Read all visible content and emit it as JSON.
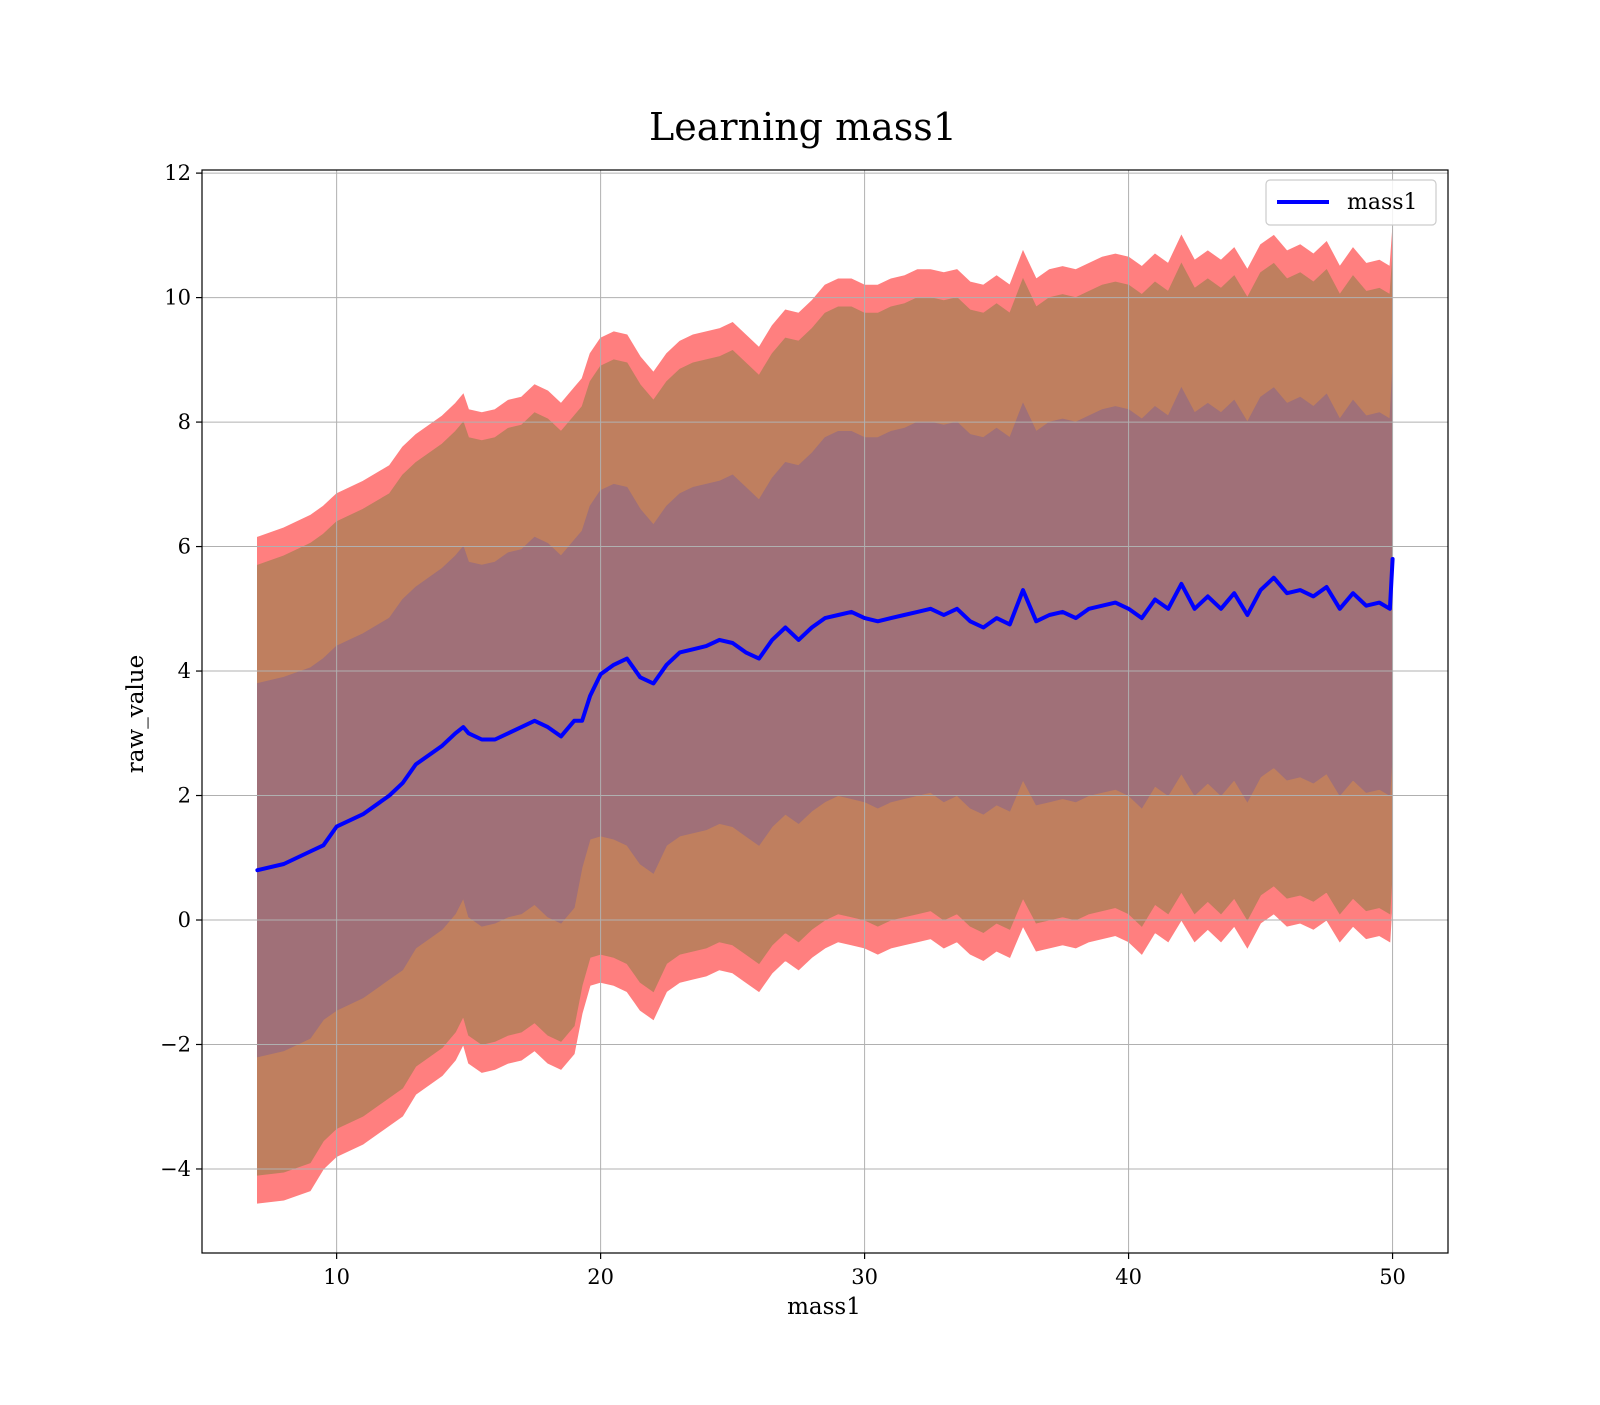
{
  "chart_data": {
    "type": "line",
    "title": "Learning mass1",
    "xlabel": "mass1",
    "ylabel": "raw_value",
    "xlim": [
      4.9,
      52.1
    ],
    "ylim": [
      -5.35,
      12.05
    ],
    "grid": true,
    "legend_position": "top-right",
    "x_ticks": [
      {
        "value": 10,
        "label": "10"
      },
      {
        "value": 20,
        "label": "20"
      },
      {
        "value": 30,
        "label": "30"
      },
      {
        "value": 40,
        "label": "40"
      },
      {
        "value": 50,
        "label": "50"
      }
    ],
    "y_ticks": [
      {
        "value": -4,
        "label": "−4"
      },
      {
        "value": -2,
        "label": "−2"
      },
      {
        "value": 0,
        "label": "0"
      },
      {
        "value": 2,
        "label": "2"
      },
      {
        "value": 4,
        "label": "4"
      },
      {
        "value": 6,
        "label": "6"
      },
      {
        "value": 8,
        "label": "8"
      },
      {
        "value": 10,
        "label": "10"
      },
      {
        "value": 12,
        "label": "12"
      }
    ],
    "x": [
      7.0,
      8.0,
      9.0,
      9.5,
      10.0,
      11.0,
      12.0,
      12.5,
      13.0,
      14.0,
      14.5,
      14.8,
      15.0,
      15.5,
      16.0,
      16.5,
      17.0,
      17.5,
      18.0,
      18.5,
      19.0,
      19.3,
      19.6,
      20.0,
      20.5,
      21.0,
      21.5,
      22.0,
      22.5,
      23.0,
      23.5,
      24.0,
      24.5,
      25.0,
      25.5,
      26.0,
      26.5,
      27.0,
      27.5,
      28.0,
      28.5,
      29.0,
      29.5,
      30.0,
      30.5,
      31.0,
      31.5,
      32.0,
      32.5,
      33.0,
      33.5,
      34.0,
      34.5,
      35.0,
      35.5,
      36.0,
      36.5,
      37.0,
      37.5,
      38.0,
      38.5,
      39.0,
      39.5,
      40.0,
      40.5,
      41.0,
      41.5,
      42.0,
      42.5,
      43.0,
      43.5,
      44.0,
      44.5,
      45.0,
      45.5,
      46.0,
      46.5,
      47.0,
      47.5,
      48.0,
      48.5,
      49.0,
      49.5,
      49.9,
      50.0
    ],
    "series": [
      {
        "name": "mass1",
        "color": "#0000ff",
        "values": [
          0.8,
          0.9,
          1.1,
          1.2,
          1.5,
          1.7,
          2.0,
          2.2,
          2.5,
          2.8,
          3.0,
          3.1,
          3.0,
          2.9,
          2.9,
          3.0,
          3.1,
          3.2,
          3.1,
          2.95,
          3.2,
          3.2,
          3.6,
          3.95,
          4.1,
          4.2,
          3.9,
          3.8,
          4.1,
          4.3,
          4.35,
          4.4,
          4.5,
          4.45,
          4.3,
          4.2,
          4.5,
          4.7,
          4.5,
          4.7,
          4.85,
          4.9,
          4.95,
          4.85,
          4.8,
          4.85,
          4.9,
          4.95,
          5.0,
          4.9,
          5.0,
          4.8,
          4.7,
          4.85,
          4.75,
          5.3,
          4.8,
          4.9,
          4.95,
          4.85,
          5.0,
          5.05,
          5.1,
          5.0,
          4.85,
          5.15,
          5.0,
          5.4,
          5.0,
          5.2,
          5.0,
          5.25,
          4.9,
          5.3,
          5.5,
          5.25,
          5.3,
          5.2,
          5.35,
          5.0,
          5.25,
          5.05,
          5.1,
          5.0,
          5.8
        ]
      }
    ],
    "bands": [
      {
        "color": "#ff7f7f",
        "upper": [
          6.15,
          6.3,
          6.5,
          6.65,
          6.85,
          7.05,
          7.3,
          7.6,
          7.8,
          8.1,
          8.3,
          8.45,
          8.2,
          8.15,
          8.2,
          8.35,
          8.4,
          8.6,
          8.5,
          8.3,
          8.55,
          8.7,
          9.1,
          9.35,
          9.45,
          9.4,
          9.05,
          8.8,
          9.1,
          9.3,
          9.4,
          9.45,
          9.5,
          9.6,
          9.4,
          9.2,
          9.55,
          9.8,
          9.75,
          9.95,
          10.2,
          10.3,
          10.3,
          10.2,
          10.2,
          10.3,
          10.35,
          10.45,
          10.45,
          10.4,
          10.45,
          10.25,
          10.2,
          10.35,
          10.2,
          10.75,
          10.3,
          10.45,
          10.5,
          10.45,
          10.55,
          10.65,
          10.7,
          10.65,
          10.5,
          10.7,
          10.55,
          11.0,
          10.6,
          10.75,
          10.6,
          10.8,
          10.45,
          10.85,
          11.0,
          10.75,
          10.85,
          10.7,
          10.9,
          10.5,
          10.8,
          10.55,
          10.6,
          10.5,
          11.1
        ],
        "lower": [
          -4.55,
          -4.5,
          -4.35,
          -4.0,
          -3.8,
          -3.6,
          -3.3,
          -3.15,
          -2.8,
          -2.5,
          -2.25,
          -2.0,
          -2.3,
          -2.45,
          -2.4,
          -2.3,
          -2.25,
          -2.1,
          -2.3,
          -2.4,
          -2.15,
          -1.5,
          -1.05,
          -1.0,
          -1.05,
          -1.15,
          -1.45,
          -1.6,
          -1.15,
          -1.0,
          -0.95,
          -0.9,
          -0.8,
          -0.85,
          -1.0,
          -1.15,
          -0.85,
          -0.65,
          -0.8,
          -0.6,
          -0.45,
          -0.35,
          -0.4,
          -0.45,
          -0.55,
          -0.45,
          -0.4,
          -0.35,
          -0.3,
          -0.45,
          -0.35,
          -0.55,
          -0.65,
          -0.5,
          -0.6,
          -0.1,
          -0.5,
          -0.45,
          -0.4,
          -0.45,
          -0.35,
          -0.3,
          -0.25,
          -0.35,
          -0.55,
          -0.2,
          -0.35,
          0.0,
          -0.35,
          -0.15,
          -0.35,
          -0.1,
          -0.45,
          -0.05,
          0.1,
          -0.1,
          -0.05,
          -0.15,
          0.0,
          -0.35,
          -0.1,
          -0.3,
          -0.25,
          -0.35,
          0.4
        ]
      },
      {
        "color": "#bf7f5f",
        "upper": [
          5.7,
          5.85,
          6.05,
          6.2,
          6.4,
          6.6,
          6.85,
          7.15,
          7.35,
          7.65,
          7.85,
          8.0,
          7.75,
          7.7,
          7.75,
          7.9,
          7.95,
          8.15,
          8.05,
          7.85,
          8.1,
          8.25,
          8.65,
          8.9,
          9.0,
          8.95,
          8.6,
          8.35,
          8.65,
          8.85,
          8.95,
          9.0,
          9.05,
          9.15,
          8.95,
          8.75,
          9.1,
          9.35,
          9.3,
          9.5,
          9.75,
          9.85,
          9.85,
          9.75,
          9.75,
          9.85,
          9.9,
          10.0,
          10.0,
          9.95,
          10.0,
          9.8,
          9.75,
          9.9,
          9.75,
          10.3,
          9.85,
          10.0,
          10.05,
          10.0,
          10.1,
          10.2,
          10.25,
          10.2,
          10.05,
          10.25,
          10.1,
          10.55,
          10.15,
          10.3,
          10.15,
          10.35,
          10.0,
          10.4,
          10.55,
          10.3,
          10.4,
          10.25,
          10.45,
          10.05,
          10.35,
          10.1,
          10.15,
          10.05,
          10.65
        ],
        "lower": [
          -4.1,
          -4.05,
          -3.9,
          -3.55,
          -3.35,
          -3.15,
          -2.85,
          -2.7,
          -2.35,
          -2.05,
          -1.8,
          -1.55,
          -1.85,
          -2.0,
          -1.95,
          -1.85,
          -1.8,
          -1.65,
          -1.85,
          -1.95,
          -1.7,
          -1.05,
          -0.6,
          -0.55,
          -0.6,
          -0.7,
          -1.0,
          -1.15,
          -0.7,
          -0.55,
          -0.5,
          -0.45,
          -0.35,
          -0.4,
          -0.55,
          -0.7,
          -0.4,
          -0.2,
          -0.35,
          -0.15,
          0.0,
          0.1,
          0.05,
          0.0,
          -0.1,
          0.0,
          0.05,
          0.1,
          0.15,
          0.0,
          0.1,
          -0.1,
          -0.2,
          -0.05,
          -0.15,
          0.35,
          -0.05,
          0.0,
          0.05,
          0.0,
          0.1,
          0.15,
          0.2,
          0.1,
          -0.1,
          0.25,
          0.1,
          0.45,
          0.1,
          0.3,
          0.1,
          0.35,
          0.0,
          0.4,
          0.55,
          0.35,
          0.4,
          0.3,
          0.45,
          0.1,
          0.35,
          0.15,
          0.2,
          0.1,
          0.85
        ]
      },
      {
        "color": "#a07078",
        "upper": [
          3.8,
          3.9,
          4.05,
          4.2,
          4.4,
          4.6,
          4.85,
          5.15,
          5.35,
          5.65,
          5.85,
          6.0,
          5.75,
          5.7,
          5.75,
          5.9,
          5.95,
          6.15,
          6.05,
          5.85,
          6.1,
          6.25,
          6.65,
          6.9,
          7.0,
          6.95,
          6.6,
          6.35,
          6.65,
          6.85,
          6.95,
          7.0,
          7.05,
          7.15,
          6.95,
          6.75,
          7.1,
          7.35,
          7.3,
          7.5,
          7.75,
          7.85,
          7.85,
          7.75,
          7.75,
          7.85,
          7.9,
          8.0,
          8.0,
          7.95,
          8.0,
          7.8,
          7.75,
          7.9,
          7.75,
          8.3,
          7.85,
          8.0,
          8.05,
          8.0,
          8.1,
          8.2,
          8.25,
          8.2,
          8.05,
          8.25,
          8.1,
          8.55,
          8.15,
          8.3,
          8.15,
          8.35,
          8.0,
          8.4,
          8.55,
          8.3,
          8.4,
          8.25,
          8.45,
          8.05,
          8.35,
          8.1,
          8.15,
          8.05,
          8.85
        ],
        "lower": [
          -2.2,
          -2.1,
          -1.9,
          -1.6,
          -1.45,
          -1.25,
          -0.95,
          -0.8,
          -0.45,
          -0.15,
          0.1,
          0.35,
          0.05,
          -0.1,
          -0.05,
          0.05,
          0.1,
          0.25,
          0.05,
          -0.05,
          0.2,
          0.85,
          1.3,
          1.35,
          1.3,
          1.2,
          0.9,
          0.75,
          1.2,
          1.35,
          1.4,
          1.45,
          1.55,
          1.5,
          1.35,
          1.2,
          1.5,
          1.7,
          1.55,
          1.75,
          1.9,
          2.0,
          1.95,
          1.9,
          1.8,
          1.9,
          1.95,
          2.0,
          2.05,
          1.9,
          2.0,
          1.8,
          1.7,
          1.85,
          1.75,
          2.25,
          1.85,
          1.9,
          1.95,
          1.9,
          2.0,
          2.05,
          2.1,
          2.0,
          1.8,
          2.15,
          2.0,
          2.35,
          2.0,
          2.2,
          2.0,
          2.25,
          1.9,
          2.3,
          2.45,
          2.25,
          2.3,
          2.2,
          2.35,
          2.0,
          2.25,
          2.05,
          2.1,
          2.0,
          2.75
        ]
      }
    ]
  }
}
